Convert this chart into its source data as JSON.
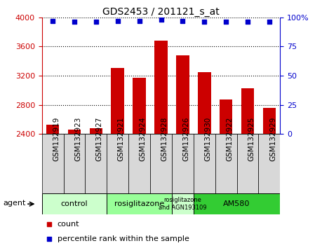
{
  "title": "GDS2453 / 201121_s_at",
  "samples": [
    "GSM132919",
    "GSM132923",
    "GSM132927",
    "GSM132921",
    "GSM132924",
    "GSM132928",
    "GSM132926",
    "GSM132930",
    "GSM132922",
    "GSM132925",
    "GSM132929"
  ],
  "counts": [
    2530,
    2460,
    2475,
    3310,
    3175,
    3680,
    3480,
    3250,
    2870,
    3030,
    2760
  ],
  "percentiles": [
    97,
    96,
    96,
    97,
    97,
    98,
    97,
    96,
    96,
    96,
    96
  ],
  "bar_color": "#cc0000",
  "dot_color": "#0000cc",
  "ylim_left": [
    2400,
    4000
  ],
  "ylim_right": [
    0,
    100
  ],
  "yticks_left": [
    2400,
    2800,
    3200,
    3600,
    4000
  ],
  "yticks_right": [
    0,
    25,
    50,
    75,
    100
  ],
  "groups": [
    {
      "label": "control",
      "start": 0,
      "end": 2,
      "color": "#ccffcc"
    },
    {
      "label": "rosiglitazone",
      "start": 3,
      "end": 5,
      "color": "#99ff99"
    },
    {
      "label": "rosiglitazone\nand AGN193109",
      "start": 6,
      "end": 6,
      "color": "#ccffcc"
    },
    {
      "label": "AM580",
      "start": 7,
      "end": 10,
      "color": "#33cc33"
    }
  ],
  "legend_count_color": "#cc0000",
  "legend_percentile_color": "#0000cc",
  "tick_label_color_left": "#cc0000",
  "tick_label_color_right": "#0000cc",
  "title_fontsize": 10,
  "bar_width": 0.6,
  "label_fontsize": 7.5,
  "group_label_fontsize": 8,
  "legend_fontsize": 8
}
